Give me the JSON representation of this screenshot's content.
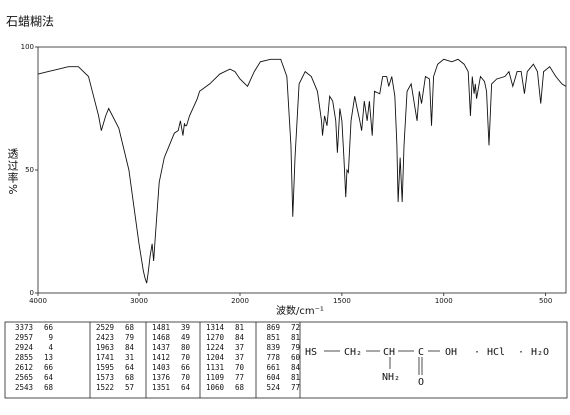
{
  "chart_data": {
    "type": "line",
    "title": "石蜡糊法",
    "ylabel": "透过率%",
    "xlabel": "波数/cm⁻¹",
    "xlim": [
      4000,
      400
    ],
    "x_scale_break": 2000,
    "ylim": [
      0,
      100
    ],
    "xticks": [
      4000,
      3000,
      2000,
      1500,
      1000,
      500
    ],
    "yticks": [
      100,
      50,
      0
    ],
    "color": "#111111",
    "x": [
      4000,
      3900,
      3800,
      3700,
      3600,
      3500,
      3450,
      3400,
      3373,
      3330,
      3300,
      3200,
      3100,
      3050,
      3000,
      2957,
      2940,
      2924,
      2910,
      2890,
      2870,
      2855,
      2840,
      2800,
      2750,
      2700,
      2650,
      2612,
      2590,
      2565,
      2550,
      2543,
      2529,
      2500,
      2423,
      2400,
      2300,
      2200,
      2100,
      2050,
      2000,
      1963,
      1930,
      1900,
      1850,
      1800,
      1770,
      1750,
      1741,
      1730,
      1710,
      1680,
      1650,
      1620,
      1600,
      1595,
      1585,
      1573,
      1560,
      1545,
      1530,
      1522,
      1510,
      1500,
      1490,
      1481,
      1475,
      1468,
      1455,
      1437,
      1425,
      1412,
      1403,
      1390,
      1376,
      1365,
      1351,
      1340,
      1314,
      1300,
      1280,
      1270,
      1255,
      1240,
      1230,
      1224,
      1214,
      1204,
      1195,
      1180,
      1160,
      1131,
      1120,
      1109,
      1090,
      1070,
      1060,
      1050,
      1030,
      1000,
      960,
      930,
      900,
      880,
      869,
      860,
      851,
      845,
      839,
      820,
      800,
      790,
      778,
      765,
      740,
      700,
      680,
      661,
      640,
      620,
      604,
      590,
      560,
      540,
      524,
      510,
      480,
      450,
      420,
      400
    ],
    "values": [
      89,
      90,
      91,
      92,
      92,
      88,
      80,
      72,
      66,
      72,
      75,
      67,
      50,
      35,
      20,
      9,
      6,
      4,
      8,
      15,
      20,
      13,
      22,
      45,
      55,
      60,
      65,
      66,
      70,
      64,
      69,
      68,
      68,
      72,
      79,
      82,
      85,
      89,
      91,
      90,
      87,
      84,
      90,
      94,
      95,
      95,
      88,
      60,
      31,
      55,
      85,
      90,
      88,
      82,
      70,
      64,
      72,
      68,
      80,
      78,
      70,
      57,
      75,
      70,
      55,
      39,
      50,
      49,
      70,
      80,
      75,
      70,
      66,
      78,
      70,
      78,
      64,
      82,
      81,
      88,
      88,
      84,
      88,
      80,
      60,
      37,
      55,
      37,
      60,
      82,
      85,
      70,
      82,
      77,
      88,
      87,
      68,
      88,
      93,
      95,
      94,
      95,
      93,
      90,
      72,
      88,
      81,
      85,
      79,
      88,
      86,
      82,
      60,
      85,
      87,
      88,
      90,
      84,
      90,
      90,
      81,
      90,
      93,
      90,
      77,
      90,
      92,
      88,
      85,
      84
    ]
  },
  "peak_table": {
    "columns": [
      [
        [
          3373,
          66
        ],
        [
          2957,
          9
        ],
        [
          2924,
          4
        ],
        [
          2855,
          13
        ],
        [
          2612,
          66
        ],
        [
          2565,
          64
        ],
        [
          2543,
          68
        ]
      ],
      [
        [
          2529,
          68
        ],
        [
          2423,
          79
        ],
        [
          1963,
          84
        ],
        [
          1741,
          31
        ],
        [
          1595,
          64
        ],
        [
          1573,
          68
        ],
        [
          1522,
          57
        ]
      ],
      [
        [
          1481,
          39
        ],
        [
          1468,
          49
        ],
        [
          1437,
          80
        ],
        [
          1412,
          70
        ],
        [
          1403,
          66
        ],
        [
          1376,
          70
        ],
        [
          1351,
          64
        ]
      ],
      [
        [
          1314,
          81
        ],
        [
          1270,
          84
        ],
        [
          1224,
          37
        ],
        [
          1204,
          37
        ],
        [
          1131,
          70
        ],
        [
          1109,
          77
        ],
        [
          1060,
          68
        ]
      ],
      [
        [
          869,
          72
        ],
        [
          851,
          81
        ],
        [
          839,
          79
        ],
        [
          778,
          60
        ],
        [
          661,
          84
        ],
        [
          604,
          81
        ],
        [
          524,
          77
        ]
      ]
    ]
  },
  "structure": {
    "parts": [
      "HS",
      "CH₂",
      "CH",
      "C",
      "OH",
      "·",
      "HCl",
      "·",
      "H₂O"
    ],
    "amine": "NH₂",
    "oxygen": "O"
  }
}
